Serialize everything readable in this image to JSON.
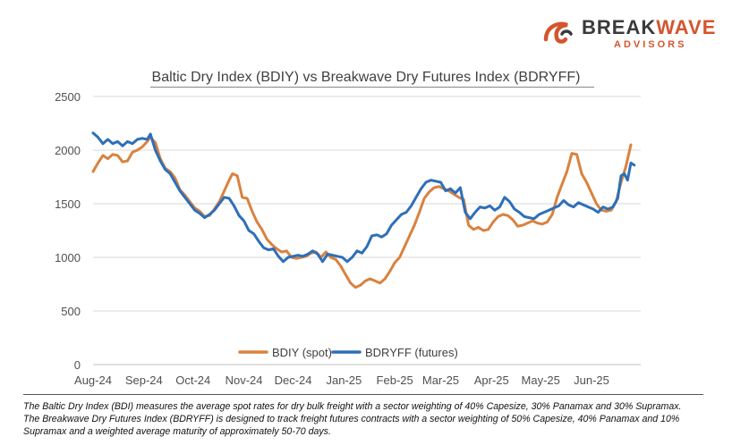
{
  "logo": {
    "word_main": "BREAK",
    "word_accent": "WAVE",
    "sub": "ADVISORS"
  },
  "colors": {
    "bdiy": "#d9823f",
    "bdryff": "#2e6fb8",
    "grid": "#d9d9d9",
    "brand_orange": "#d4552c"
  },
  "chart_data": {
    "type": "line",
    "title": "Baltic Dry Index (BDIY) vs Breakwave Dry Futures Index (BDRYFF)",
    "xlabel": "",
    "ylabel": "",
    "ylim": [
      0,
      2500
    ],
    "yticks": [
      0,
      500,
      1000,
      1500,
      2000,
      2500
    ],
    "x_axis": "date",
    "xlim": [
      "2024-08-01",
      "2025-07-01"
    ],
    "xticks": [
      "Aug-24",
      "Sep-24",
      "Oct-24",
      "Nov-24",
      "Dec-24",
      "Jan-25",
      "Feb-25",
      "Mar-25",
      "Apr-25",
      "May-25",
      "Jun-25"
    ],
    "xtick_dates": [
      "2024-08-01",
      "2024-09-01",
      "2024-10-01",
      "2024-11-01",
      "2024-12-01",
      "2025-01-01",
      "2025-02-01",
      "2025-03-01",
      "2025-04-01",
      "2025-05-01",
      "2025-06-01"
    ],
    "grid": true,
    "legend_position": "bottom",
    "series": [
      {
        "name": "BDIY (spot)",
        "color": "#d9823f",
        "points": [
          [
            "2024-08-01",
            1800
          ],
          [
            "2024-08-04",
            1880
          ],
          [
            "2024-08-07",
            1950
          ],
          [
            "2024-08-10",
            1920
          ],
          [
            "2024-08-13",
            1960
          ],
          [
            "2024-08-16",
            1950
          ],
          [
            "2024-08-19",
            1890
          ],
          [
            "2024-08-22",
            1900
          ],
          [
            "2024-08-25",
            1980
          ],
          [
            "2024-08-28",
            2000
          ],
          [
            "2024-08-31",
            2030
          ],
          [
            "2024-09-03",
            2080
          ],
          [
            "2024-09-05",
            2120
          ],
          [
            "2024-09-08",
            2070
          ],
          [
            "2024-09-11",
            1920
          ],
          [
            "2024-09-14",
            1830
          ],
          [
            "2024-09-17",
            1800
          ],
          [
            "2024-09-20",
            1740
          ],
          [
            "2024-09-23",
            1630
          ],
          [
            "2024-09-26",
            1580
          ],
          [
            "2024-09-29",
            1520
          ],
          [
            "2024-10-02",
            1460
          ],
          [
            "2024-10-05",
            1430
          ],
          [
            "2024-10-08",
            1380
          ],
          [
            "2024-10-11",
            1390
          ],
          [
            "2024-10-14",
            1450
          ],
          [
            "2024-10-17",
            1520
          ],
          [
            "2024-10-20",
            1620
          ],
          [
            "2024-10-23",
            1720
          ],
          [
            "2024-10-25",
            1780
          ],
          [
            "2024-10-28",
            1760
          ],
          [
            "2024-10-31",
            1560
          ],
          [
            "2024-11-03",
            1550
          ],
          [
            "2024-11-06",
            1430
          ],
          [
            "2024-11-09",
            1330
          ],
          [
            "2024-11-12",
            1260
          ],
          [
            "2024-11-15",
            1170
          ],
          [
            "2024-11-18",
            1120
          ],
          [
            "2024-11-21",
            1080
          ],
          [
            "2024-11-24",
            1050
          ],
          [
            "2024-11-27",
            1060
          ],
          [
            "2024-11-30",
            1000
          ],
          [
            "2024-12-03",
            990
          ],
          [
            "2024-12-06",
            1000
          ],
          [
            "2024-12-09",
            1010
          ],
          [
            "2024-12-12",
            1040
          ],
          [
            "2024-12-15",
            1050
          ],
          [
            "2024-12-18",
            1000
          ],
          [
            "2024-12-21",
            1050
          ],
          [
            "2024-12-24",
            1000
          ],
          [
            "2024-12-27",
            980
          ],
          [
            "2024-12-30",
            920
          ],
          [
            "2025-01-02",
            840
          ],
          [
            "2025-01-05",
            760
          ],
          [
            "2025-01-08",
            720
          ],
          [
            "2025-01-11",
            740
          ],
          [
            "2025-01-14",
            780
          ],
          [
            "2025-01-17",
            800
          ],
          [
            "2025-01-20",
            780
          ],
          [
            "2025-01-23",
            760
          ],
          [
            "2025-01-26",
            800
          ],
          [
            "2025-01-29",
            870
          ],
          [
            "2025-02-01",
            950
          ],
          [
            "2025-02-04",
            1000
          ],
          [
            "2025-02-07",
            1100
          ],
          [
            "2025-02-10",
            1200
          ],
          [
            "2025-02-13",
            1300
          ],
          [
            "2025-02-16",
            1420
          ],
          [
            "2025-02-19",
            1550
          ],
          [
            "2025-02-22",
            1610
          ],
          [
            "2025-02-25",
            1650
          ],
          [
            "2025-02-28",
            1660
          ],
          [
            "2025-03-03",
            1640
          ],
          [
            "2025-03-06",
            1620
          ],
          [
            "2025-03-09",
            1590
          ],
          [
            "2025-03-12",
            1560
          ],
          [
            "2025-03-15",
            1540
          ],
          [
            "2025-03-18",
            1300
          ],
          [
            "2025-03-21",
            1260
          ],
          [
            "2025-03-24",
            1280
          ],
          [
            "2025-03-27",
            1250
          ],
          [
            "2025-03-30",
            1260
          ],
          [
            "2025-04-02",
            1330
          ],
          [
            "2025-04-05",
            1380
          ],
          [
            "2025-04-08",
            1400
          ],
          [
            "2025-04-11",
            1390
          ],
          [
            "2025-04-14",
            1350
          ],
          [
            "2025-04-17",
            1290
          ],
          [
            "2025-04-20",
            1300
          ],
          [
            "2025-04-23",
            1320
          ],
          [
            "2025-04-26",
            1340
          ],
          [
            "2025-04-29",
            1320
          ],
          [
            "2025-05-02",
            1310
          ],
          [
            "2025-05-05",
            1330
          ],
          [
            "2025-05-08",
            1400
          ],
          [
            "2025-05-11",
            1560
          ],
          [
            "2025-05-14",
            1680
          ],
          [
            "2025-05-17",
            1800
          ],
          [
            "2025-05-20",
            1970
          ],
          [
            "2025-05-23",
            1960
          ],
          [
            "2025-05-26",
            1780
          ],
          [
            "2025-05-29",
            1700
          ],
          [
            "2025-06-01",
            1600
          ],
          [
            "2025-06-04",
            1500
          ],
          [
            "2025-06-07",
            1440
          ],
          [
            "2025-06-10",
            1430
          ],
          [
            "2025-06-13",
            1440
          ],
          [
            "2025-06-16",
            1520
          ],
          [
            "2025-06-19",
            1700
          ],
          [
            "2025-06-22",
            1850
          ],
          [
            "2025-06-25",
            2050
          ]
        ]
      },
      {
        "name": "BDRYFF (futures)",
        "color": "#2e6fb8",
        "points": [
          [
            "2024-08-01",
            2160
          ],
          [
            "2024-08-04",
            2120
          ],
          [
            "2024-08-07",
            2060
          ],
          [
            "2024-08-10",
            2100
          ],
          [
            "2024-08-13",
            2060
          ],
          [
            "2024-08-16",
            2080
          ],
          [
            "2024-08-19",
            2040
          ],
          [
            "2024-08-22",
            2080
          ],
          [
            "2024-08-25",
            2060
          ],
          [
            "2024-08-28",
            2100
          ],
          [
            "2024-08-31",
            2110
          ],
          [
            "2024-09-03",
            2100
          ],
          [
            "2024-09-05",
            2150
          ],
          [
            "2024-09-08",
            2000
          ],
          [
            "2024-09-11",
            1900
          ],
          [
            "2024-09-14",
            1820
          ],
          [
            "2024-09-17",
            1780
          ],
          [
            "2024-09-20",
            1700
          ],
          [
            "2024-09-23",
            1620
          ],
          [
            "2024-09-26",
            1560
          ],
          [
            "2024-09-29",
            1500
          ],
          [
            "2024-10-02",
            1440
          ],
          [
            "2024-10-05",
            1410
          ],
          [
            "2024-10-08",
            1370
          ],
          [
            "2024-10-11",
            1400
          ],
          [
            "2024-10-14",
            1440
          ],
          [
            "2024-10-17",
            1500
          ],
          [
            "2024-10-20",
            1560
          ],
          [
            "2024-10-23",
            1550
          ],
          [
            "2024-10-26",
            1480
          ],
          [
            "2024-10-29",
            1390
          ],
          [
            "2024-11-01",
            1340
          ],
          [
            "2024-11-04",
            1250
          ],
          [
            "2024-11-07",
            1220
          ],
          [
            "2024-11-10",
            1150
          ],
          [
            "2024-11-13",
            1090
          ],
          [
            "2024-11-16",
            1070
          ],
          [
            "2024-11-19",
            1080
          ],
          [
            "2024-11-22",
            1010
          ],
          [
            "2024-11-25",
            960
          ],
          [
            "2024-11-28",
            1000
          ],
          [
            "2024-12-01",
            1010
          ],
          [
            "2024-12-04",
            1020
          ],
          [
            "2024-12-07",
            1010
          ],
          [
            "2024-12-10",
            1030
          ],
          [
            "2024-12-13",
            1060
          ],
          [
            "2024-12-16",
            1030
          ],
          [
            "2024-12-19",
            960
          ],
          [
            "2024-12-22",
            1030
          ],
          [
            "2024-12-25",
            1020
          ],
          [
            "2024-12-28",
            1010
          ],
          [
            "2024-12-31",
            1000
          ],
          [
            "2025-01-03",
            960
          ],
          [
            "2025-01-06",
            1000
          ],
          [
            "2025-01-09",
            1060
          ],
          [
            "2025-01-12",
            1040
          ],
          [
            "2025-01-15",
            1100
          ],
          [
            "2025-01-18",
            1200
          ],
          [
            "2025-01-21",
            1210
          ],
          [
            "2025-01-24",
            1190
          ],
          [
            "2025-01-27",
            1220
          ],
          [
            "2025-01-30",
            1300
          ],
          [
            "2025-02-02",
            1350
          ],
          [
            "2025-02-05",
            1400
          ],
          [
            "2025-02-08",
            1420
          ],
          [
            "2025-02-11",
            1480
          ],
          [
            "2025-02-14",
            1560
          ],
          [
            "2025-02-17",
            1640
          ],
          [
            "2025-02-20",
            1700
          ],
          [
            "2025-02-23",
            1720
          ],
          [
            "2025-02-26",
            1710
          ],
          [
            "2025-03-01",
            1700
          ],
          [
            "2025-03-04",
            1620
          ],
          [
            "2025-03-07",
            1640
          ],
          [
            "2025-03-10",
            1600
          ],
          [
            "2025-03-13",
            1650
          ],
          [
            "2025-03-16",
            1420
          ],
          [
            "2025-03-19",
            1360
          ],
          [
            "2025-03-22",
            1420
          ],
          [
            "2025-03-25",
            1470
          ],
          [
            "2025-03-28",
            1460
          ],
          [
            "2025-03-31",
            1480
          ],
          [
            "2025-04-03",
            1440
          ],
          [
            "2025-04-06",
            1470
          ],
          [
            "2025-04-09",
            1560
          ],
          [
            "2025-04-12",
            1520
          ],
          [
            "2025-04-15",
            1450
          ],
          [
            "2025-04-18",
            1420
          ],
          [
            "2025-04-21",
            1380
          ],
          [
            "2025-04-24",
            1370
          ],
          [
            "2025-04-27",
            1360
          ],
          [
            "2025-04-30",
            1400
          ],
          [
            "2025-05-03",
            1420
          ],
          [
            "2025-05-06",
            1440
          ],
          [
            "2025-05-09",
            1460
          ],
          [
            "2025-05-12",
            1480
          ],
          [
            "2025-05-15",
            1530
          ],
          [
            "2025-05-18",
            1490
          ],
          [
            "2025-05-21",
            1470
          ],
          [
            "2025-05-24",
            1510
          ],
          [
            "2025-05-27",
            1490
          ],
          [
            "2025-05-30",
            1470
          ],
          [
            "2025-06-02",
            1450
          ],
          [
            "2025-06-05",
            1420
          ],
          [
            "2025-06-08",
            1470
          ],
          [
            "2025-06-11",
            1450
          ],
          [
            "2025-06-14",
            1470
          ],
          [
            "2025-06-17",
            1550
          ],
          [
            "2025-06-19",
            1760
          ],
          [
            "2025-06-21",
            1780
          ],
          [
            "2025-06-23",
            1720
          ],
          [
            "2025-06-25",
            1880
          ],
          [
            "2025-06-27",
            1860
          ]
        ]
      }
    ]
  },
  "footnote": {
    "line1": "The Baltic Dry Index (BDI) measures the average spot rates for dry bulk freight with a sector weighting of 40% Capesize, 30% Panamax and 30% Supramax.",
    "line2": "The Breakwave Dry Futures Index (BDRYFF) is designed to track freight futures contracts with a sector weighting of 50% Capesize, 40% Panamax and 10% Supramax and a weighted average maturity of approximately 50-70 days."
  }
}
